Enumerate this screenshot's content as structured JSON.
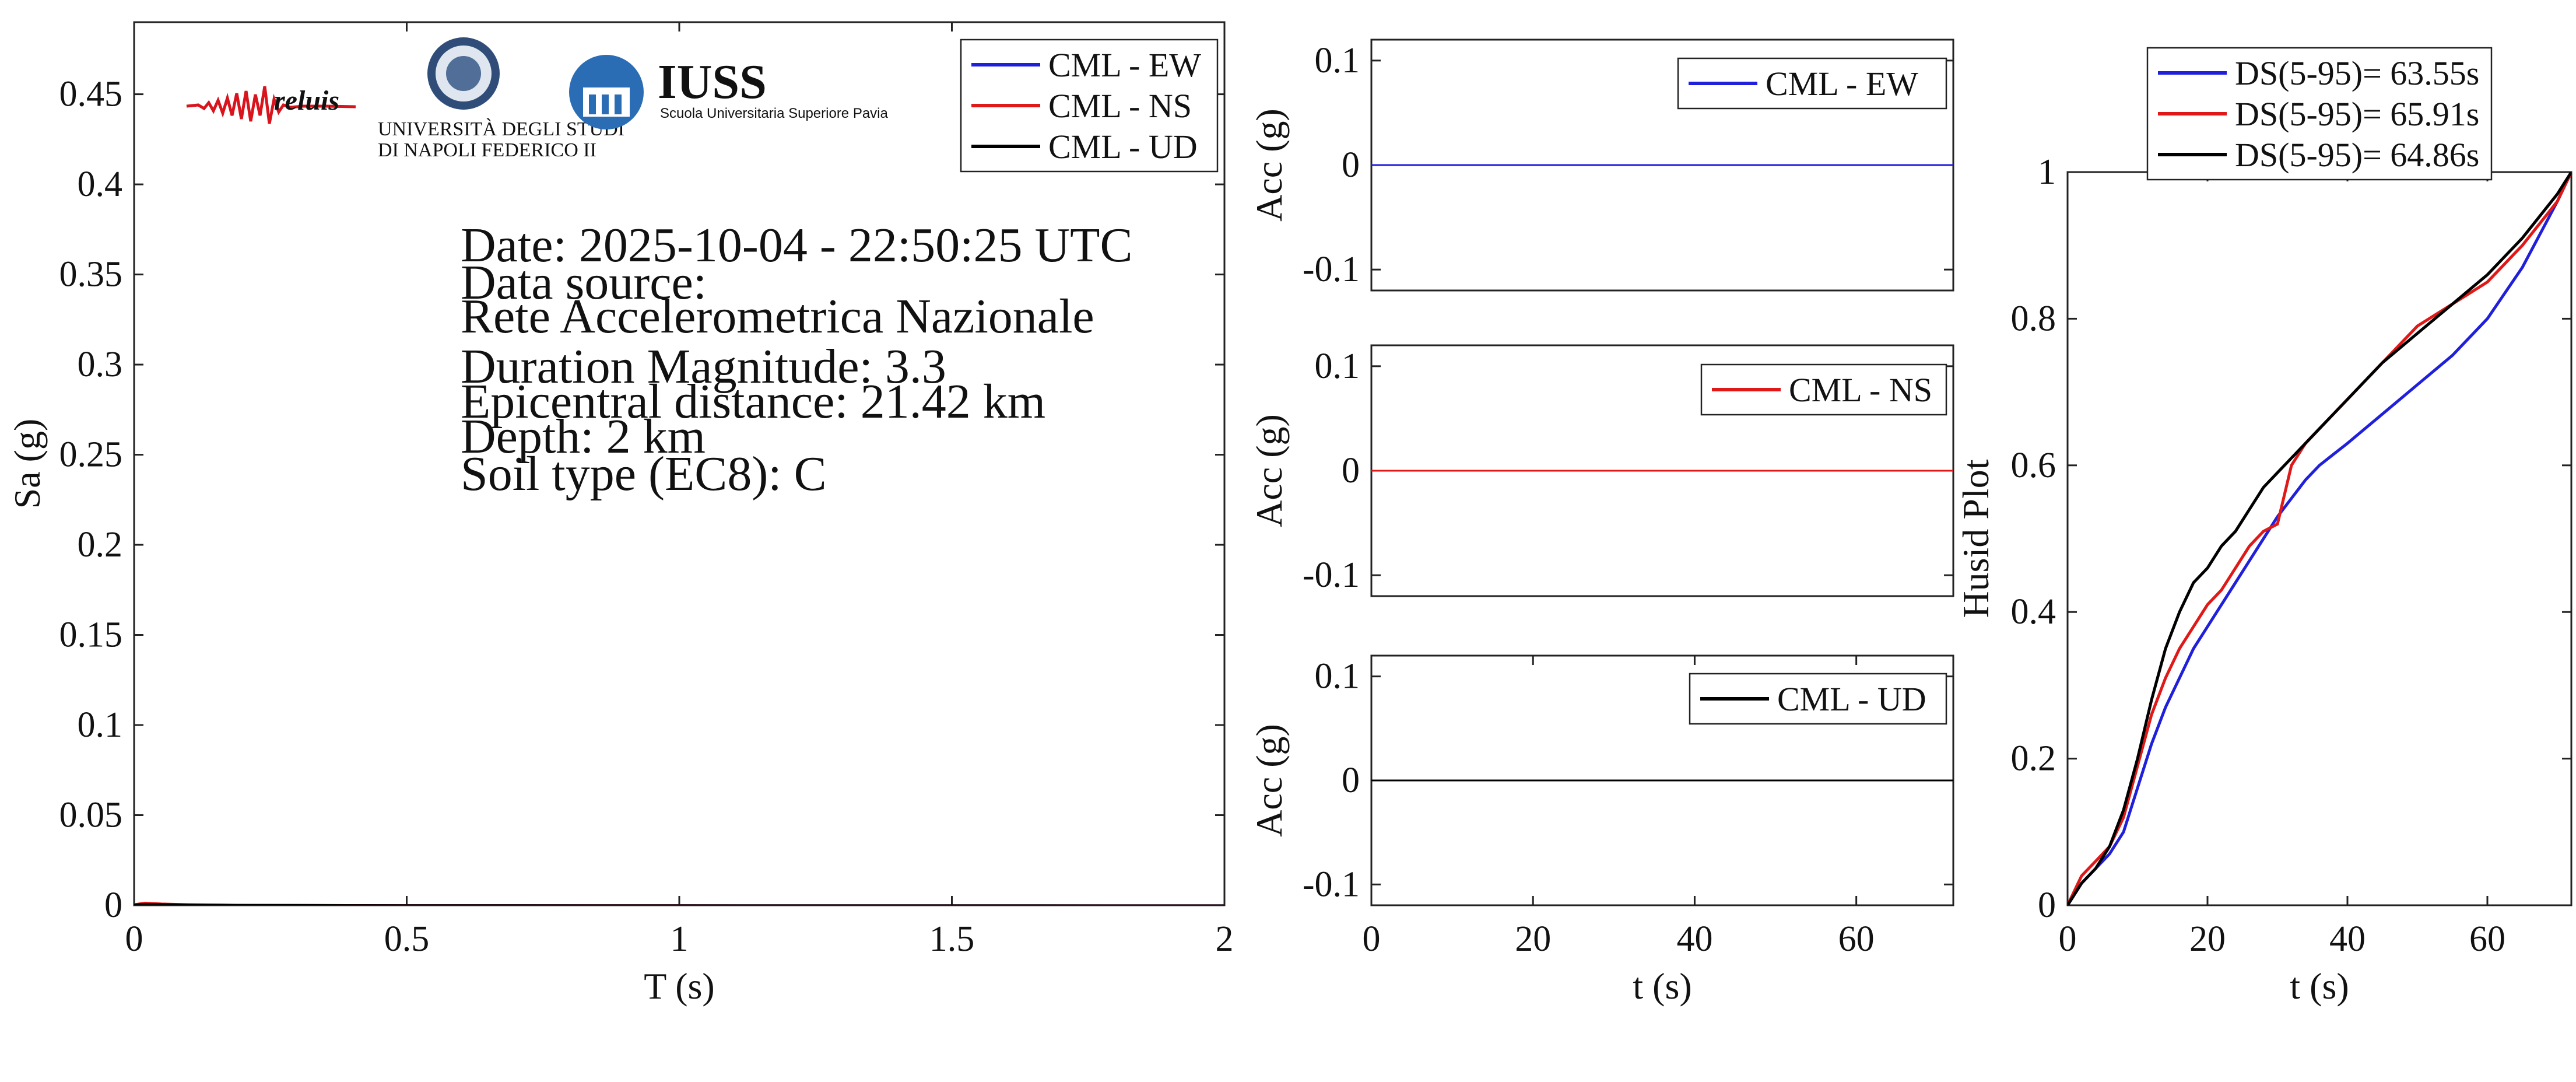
{
  "logos": {
    "reluis": "reluis",
    "unina_line1": "UNIVERSITÀ DEGLI STUDI",
    "unina_line2": "DI NAPOLI FEDERICO II",
    "iuss_name": "IUSS",
    "iuss_sub": "Scuola Universitaria Superiore Pavia"
  },
  "info": {
    "date": "Date: 2025-10-04 - 22:50:25 UTC",
    "source_label": "Data source:",
    "source": "Rete Accelerometrica Nazionale",
    "magnitude": "Duration Magnitude: 3.3",
    "distance": "Epicentral distance: 21.42 km",
    "depth": "Depth: 2 km",
    "soil": "Soil type (EC8): C"
  },
  "colors": {
    "ew": "#1f1fdc",
    "ns": "#e01818",
    "ud": "#000000"
  },
  "chart_data": [
    {
      "type": "line",
      "xlabel": "T (s)",
      "ylabel": "Sa (g)",
      "xlim": [
        0,
        2
      ],
      "ylim": [
        0,
        0.49
      ],
      "xticks": [
        0,
        0.5,
        1,
        1.5,
        2
      ],
      "xtick_labels": [
        "0",
        "0.5",
        "1",
        "1.5",
        "2"
      ],
      "yticks": [
        0,
        0.05,
        0.1,
        0.15,
        0.2,
        0.25,
        0.3,
        0.35,
        0.4,
        0.45
      ],
      "ytick_labels": [
        "0",
        "0.05",
        "0.1",
        "0.15",
        "0.2",
        "0.25",
        "0.3",
        "0.35",
        "0.4",
        "0.45"
      ],
      "legend": "top-right",
      "series": [
        {
          "name": "CML - EW",
          "color": "#1f1fdc",
          "x": [
            0,
            0.02,
            0.05,
            0.1,
            0.2,
            0.5,
            1,
            1.5,
            2
          ],
          "y": [
            0.0005,
            0.001,
            0.0008,
            0.0005,
            0.0003,
            0.0001,
            5e-05,
            3e-05,
            2e-05
          ]
        },
        {
          "name": "CML - NS",
          "color": "#e01818",
          "x": [
            0,
            0.02,
            0.05,
            0.1,
            0.2,
            0.5,
            1,
            1.5,
            2
          ],
          "y": [
            0.0006,
            0.0015,
            0.001,
            0.0006,
            0.0003,
            0.0001,
            5e-05,
            3e-05,
            2e-05
          ]
        },
        {
          "name": "CML - UD",
          "color": "#000000",
          "x": [
            0,
            0.02,
            0.05,
            0.1,
            0.2,
            0.5,
            1,
            1.5,
            2
          ],
          "y": [
            0.0004,
            0.0008,
            0.0006,
            0.0004,
            0.0002,
            0.0001,
            4e-05,
            2e-05,
            1e-05
          ]
        }
      ]
    },
    {
      "type": "line",
      "xlabel": "",
      "ylabel": "Acc (g)",
      "xlim": [
        0,
        72
      ],
      "ylim": [
        -0.12,
        0.12
      ],
      "yticks": [
        -0.1,
        0,
        0.1
      ],
      "ytick_labels": [
        "-0.1",
        "0",
        "0.1"
      ],
      "xticks": [],
      "legend": "top-right",
      "series": [
        {
          "name": "CML - EW",
          "color": "#1f1fdc",
          "x": [
            0,
            72
          ],
          "y": [
            0,
            0
          ]
        }
      ]
    },
    {
      "type": "line",
      "xlabel": "",
      "ylabel": "Acc (g)",
      "xlim": [
        0,
        72
      ],
      "ylim": [
        -0.12,
        0.12
      ],
      "yticks": [
        -0.1,
        0,
        0.1
      ],
      "ytick_labels": [
        "-0.1",
        "0",
        "0.1"
      ],
      "xticks": [],
      "legend": "top-right",
      "series": [
        {
          "name": "CML - NS",
          "color": "#e01818",
          "x": [
            0,
            72
          ],
          "y": [
            0,
            0
          ]
        }
      ]
    },
    {
      "type": "line",
      "xlabel": "t (s)",
      "ylabel": "Acc (g)",
      "xlim": [
        0,
        72
      ],
      "ylim": [
        -0.12,
        0.12
      ],
      "yticks": [
        -0.1,
        0,
        0.1
      ],
      "ytick_labels": [
        "-0.1",
        "0",
        "0.1"
      ],
      "xticks": [
        0,
        20,
        40,
        60
      ],
      "xtick_labels": [
        "0",
        "20",
        "40",
        "60"
      ],
      "legend": "top-right",
      "series": [
        {
          "name": "CML - UD",
          "color": "#000000",
          "x": [
            0,
            72
          ],
          "y": [
            0,
            0
          ]
        }
      ]
    },
    {
      "type": "line",
      "xlabel": "t (s)",
      "ylabel": "Husid Plot",
      "xlim": [
        0,
        72
      ],
      "ylim": [
        0,
        1
      ],
      "xticks": [
        0,
        20,
        40,
        60
      ],
      "xtick_labels": [
        "0",
        "20",
        "40",
        "60"
      ],
      "yticks": [
        0,
        0.2,
        0.4,
        0.6,
        0.8,
        1
      ],
      "ytick_labels": [
        "0",
        "0.2",
        "0.4",
        "0.6",
        "0.8",
        "1"
      ],
      "legend": "above-top",
      "series": [
        {
          "name": "DS(5-95)= 63.55s",
          "color": "#1f1fdc",
          "x": [
            0,
            2,
            4,
            6,
            8,
            10,
            12,
            14,
            16,
            18,
            20,
            22,
            24,
            26,
            28,
            30,
            32,
            34,
            36,
            38,
            40,
            45,
            50,
            55,
            60,
            65,
            70,
            72
          ],
          "y": [
            0,
            0.03,
            0.05,
            0.07,
            0.1,
            0.16,
            0.22,
            0.27,
            0.31,
            0.35,
            0.38,
            0.41,
            0.44,
            0.47,
            0.5,
            0.53,
            0.555,
            0.58,
            0.6,
            0.615,
            0.63,
            0.67,
            0.71,
            0.75,
            0.8,
            0.87,
            0.96,
            1.0
          ]
        },
        {
          "name": "DS(5-95)= 65.91s",
          "color": "#e01818",
          "x": [
            0,
            2,
            4,
            6,
            8,
            10,
            12,
            14,
            16,
            18,
            20,
            22,
            24,
            26,
            28,
            30,
            32,
            34,
            36,
            38,
            40,
            45,
            50,
            55,
            60,
            65,
            70,
            72
          ],
          "y": [
            0,
            0.04,
            0.06,
            0.08,
            0.12,
            0.19,
            0.26,
            0.31,
            0.35,
            0.38,
            0.41,
            0.43,
            0.46,
            0.49,
            0.51,
            0.52,
            0.6,
            0.63,
            0.65,
            0.67,
            0.69,
            0.74,
            0.79,
            0.82,
            0.85,
            0.9,
            0.96,
            1.0
          ]
        },
        {
          "name": "DS(5-95)= 64.86s",
          "color": "#000000",
          "x": [
            0,
            2,
            4,
            6,
            8,
            10,
            12,
            14,
            16,
            18,
            20,
            22,
            24,
            26,
            28,
            30,
            32,
            34,
            36,
            38,
            40,
            45,
            50,
            55,
            60,
            65,
            70,
            72
          ],
          "y": [
            0,
            0.03,
            0.05,
            0.08,
            0.13,
            0.2,
            0.28,
            0.35,
            0.4,
            0.44,
            0.46,
            0.49,
            0.51,
            0.54,
            0.57,
            0.59,
            0.61,
            0.63,
            0.65,
            0.67,
            0.69,
            0.74,
            0.78,
            0.82,
            0.86,
            0.91,
            0.97,
            1.0
          ]
        }
      ]
    }
  ]
}
